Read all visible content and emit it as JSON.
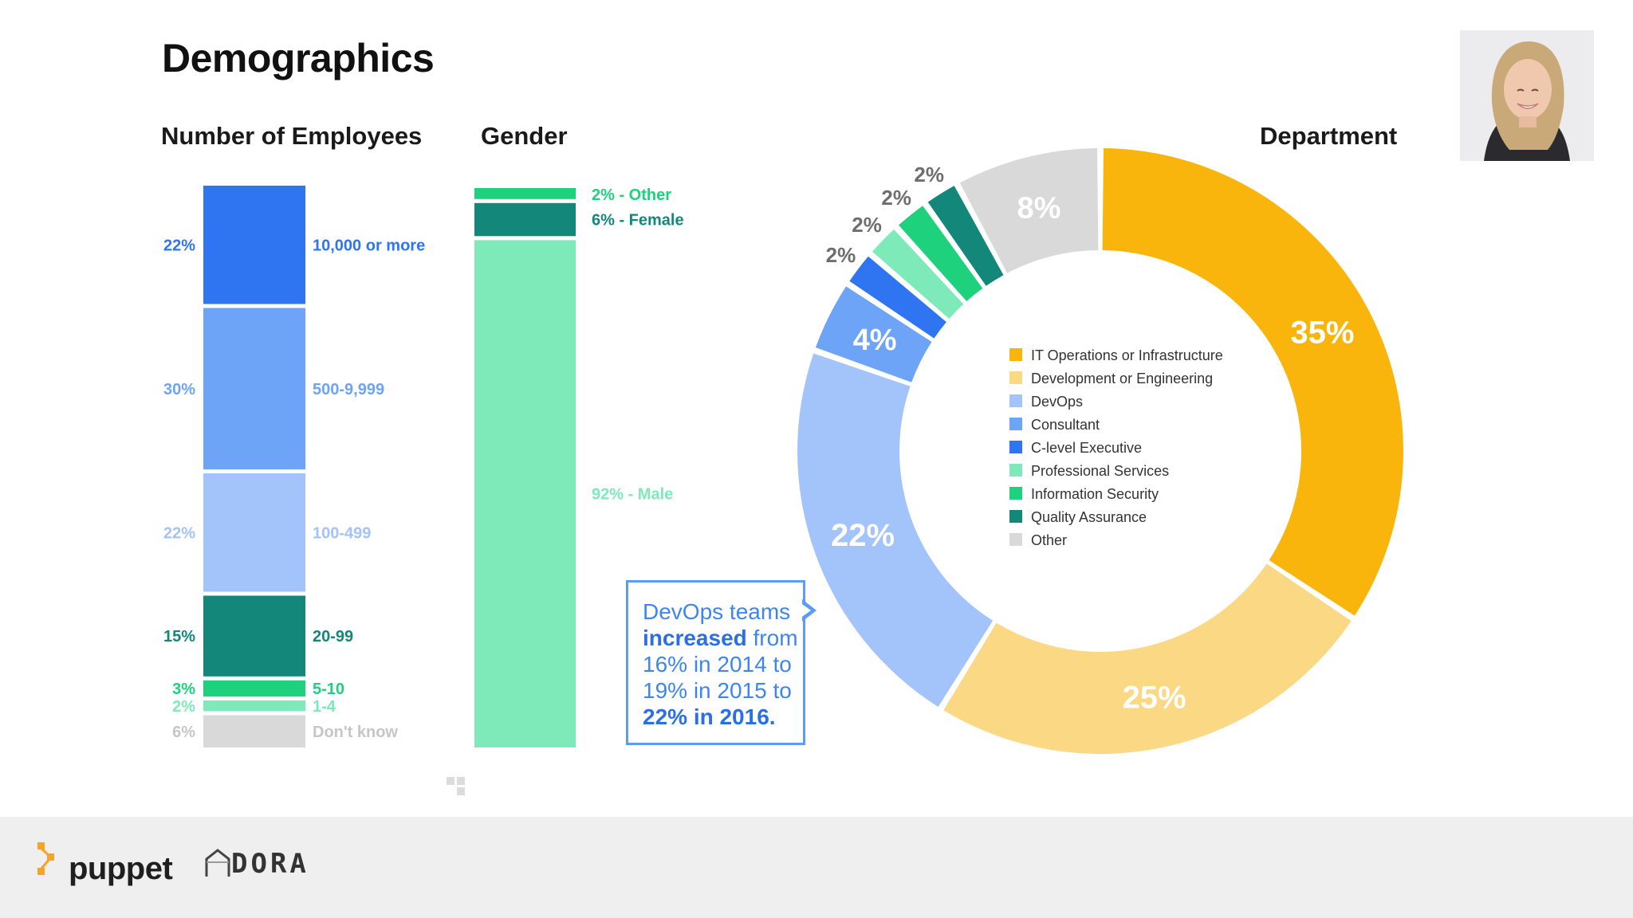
{
  "title": "Demographics",
  "colors": {
    "it_ops": "#f9b50c",
    "dev_eng": "#fad884",
    "devops": "#a3c3fb",
    "consultant": "#6ea4f8",
    "clevel": "#2f74f0",
    "prof_services": "#7eeab9",
    "info_sec": "#1ed27d",
    "qa": "#12877a",
    "other": "#d9d9d9"
  },
  "callout": {
    "line1": "DevOps teams",
    "line2_bold": "increased",
    "line2_rest": " from",
    "line3": "16% in 2014 to",
    "line4": "19% in 2015 to",
    "line5_bold": "22% in 2016."
  },
  "footer": {
    "puppet": "puppet",
    "dora": "DORA",
    "puppet_icon": "puppet-logo-icon",
    "dora_icon": "dora-house-icon"
  },
  "chart_data": [
    {
      "type": "bar",
      "title": "Number of Employees",
      "stacked": true,
      "categories": [
        "10,000 or more",
        "500-9,999",
        "100-499",
        "20-99",
        "5-10",
        "1-4",
        "Don't know"
      ],
      "values": [
        22,
        30,
        22,
        15,
        3,
        2,
        6
      ],
      "value_labels": [
        "22%",
        "30%",
        "22%",
        "15%",
        "3%",
        "2%",
        "6%"
      ],
      "colors": [
        "#2f74f0",
        "#6ea4f8",
        "#a3c3fb",
        "#12877a",
        "#1ed27d",
        "#7eeab9",
        "#d9d9d9"
      ],
      "label_colors": [
        "#2f74f0",
        "#6ea4f8",
        "#a3c3fb",
        "#12877a",
        "#1ed27d",
        "#7eeab9",
        "#c6c6c6"
      ]
    },
    {
      "type": "bar",
      "title": "Gender",
      "stacked": true,
      "categories": [
        "Other",
        "Female",
        "Male"
      ],
      "values": [
        2,
        6,
        92
      ],
      "labels": [
        "2%  -  Other",
        "6%  -  Female",
        "92%  -  Male"
      ],
      "colors": [
        "#1ed27d",
        "#12877a",
        "#7eeab9"
      ],
      "label_colors": [
        "#1ed27d",
        "#12877a",
        "#7eeab9"
      ]
    },
    {
      "type": "pie",
      "donut": true,
      "title": "Department",
      "categories": [
        "IT Operations or Infrastructure",
        "Development or Engineering",
        "DevOps",
        "Consultant",
        "C-level Executive",
        "Professional Services",
        "Information Security",
        "Quality Assurance",
        "Other"
      ],
      "values": [
        35,
        25,
        22,
        4,
        2,
        2,
        2,
        2,
        8
      ],
      "value_labels": [
        "35%",
        "25%",
        "22%",
        "4%",
        "2%",
        "2%",
        "2%",
        "2%",
        "8%"
      ],
      "colors": [
        "#f9b50c",
        "#fad884",
        "#a3c3fb",
        "#6ea4f8",
        "#2f74f0",
        "#7eeab9",
        "#1ed27d",
        "#12877a",
        "#d9d9d9"
      ],
      "legend_position": "center"
    }
  ]
}
